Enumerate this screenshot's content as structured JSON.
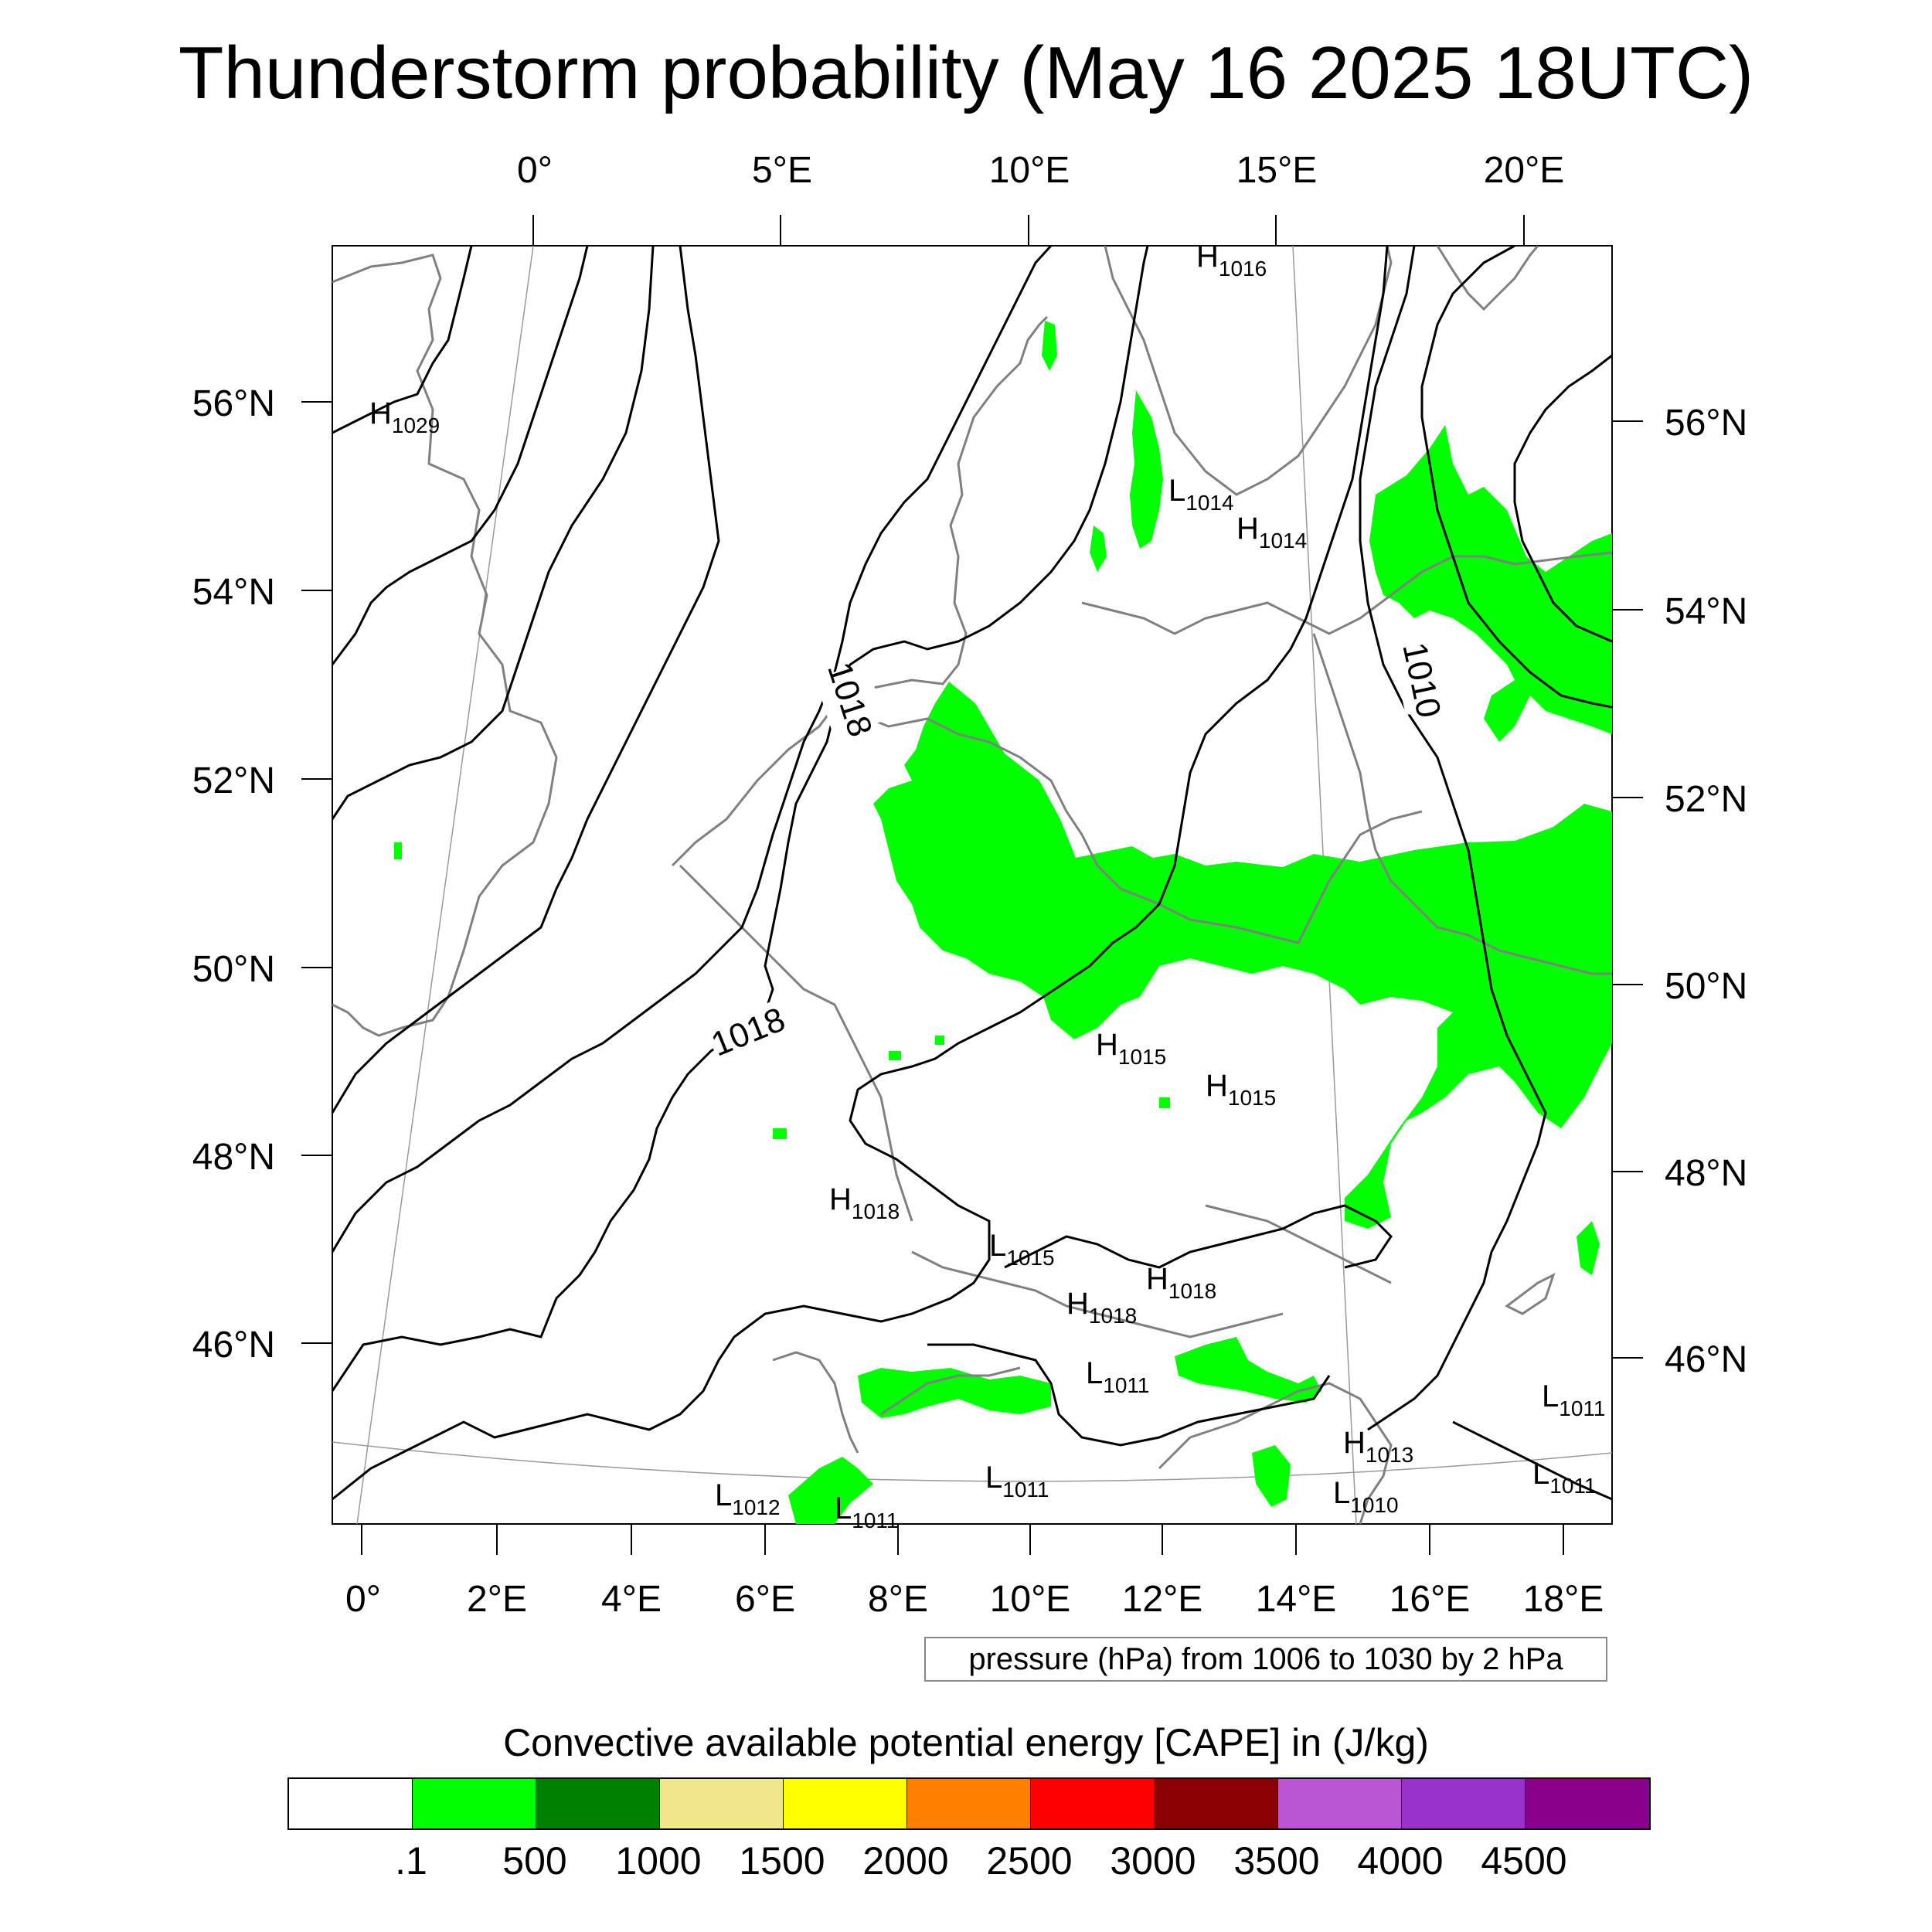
{
  "title": "Thunderstorm probability (May 16 2025 18UTC)",
  "top_lon_labels": [
    "0°",
    "5°E",
    "10°E",
    "15°E",
    "20°E"
  ],
  "bottom_lon_labels": [
    "0°",
    "2°E",
    "4°E",
    "6°E",
    "8°E",
    "10°E",
    "12°E",
    "14°E",
    "16°E",
    "18°E"
  ],
  "left_lat_labels": [
    "56°N",
    "54°N",
    "52°N",
    "50°N",
    "48°N",
    "46°N"
  ],
  "right_lat_labels": [
    "56°N",
    "54°N",
    "52°N",
    "50°N",
    "48°N",
    "46°N"
  ],
  "isobar_labels": [
    "1018",
    "1018",
    "1010"
  ],
  "pressure_systems": [
    {
      "type": "H",
      "value": "1029"
    },
    {
      "type": "H",
      "value": "1016"
    },
    {
      "type": "L",
      "value": "1014"
    },
    {
      "type": "H",
      "value": "1014"
    },
    {
      "type": "H",
      "value": "1015"
    },
    {
      "type": "H",
      "value": "1015"
    },
    {
      "type": "H",
      "value": "1018"
    },
    {
      "type": "L",
      "value": "1015"
    },
    {
      "type": "H",
      "value": "1018"
    },
    {
      "type": "H",
      "value": "1018"
    },
    {
      "type": "L",
      "value": "1011"
    },
    {
      "type": "H",
      "value": "1013"
    },
    {
      "type": "L",
      "value": "1010"
    },
    {
      "type": "L",
      "value": "1011"
    },
    {
      "type": "L",
      "value": "1011"
    },
    {
      "type": "L",
      "value": "1011"
    },
    {
      "type": "L",
      "value": "1012"
    },
    {
      "type": "L",
      "value": "1011"
    }
  ],
  "info_box": "pressure (hPa) from 1006 to 1030 by 2 hPa",
  "colorbar": {
    "title": "Convective available potential energy [CAPE] in (J/kg)",
    "colors": [
      "#ffffff",
      "#00ff00",
      "#008000",
      "#f0e68c",
      "#ffff00",
      "#ff8000",
      "#ff0000",
      "#8b0000",
      "#ba55d3",
      "#9932cc",
      "#8b008b"
    ],
    "tick_labels": [
      ".1",
      "500",
      "1000",
      "1500",
      "2000",
      "2500",
      "3000",
      "3500",
      "4000",
      "4500"
    ]
  },
  "colors": {
    "cape_shading": "#00ff00",
    "coastline": "#808080",
    "isobar": "#000000"
  }
}
